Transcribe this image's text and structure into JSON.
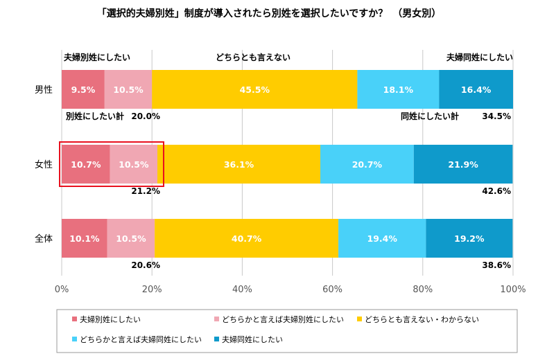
{
  "chart_data": {
    "type": "bar",
    "stacked": true,
    "orientation": "horizontal",
    "title": "「選択的夫婦別姓」制度が導入されたら別姓を選択したいですか？　（男女別）",
    "categories": [
      "男性",
      "女性",
      "全体"
    ],
    "series": [
      {
        "name": "夫婦別姓にしたい",
        "color": "#e8707e",
        "values": [
          9.5,
          10.7,
          10.1
        ],
        "labels": [
          "9.5%",
          "10.7%",
          "10.1%"
        ]
      },
      {
        "name": "どちらかと言えば夫婦別姓にしたい",
        "color": "#f0a7b3",
        "values": [
          10.5,
          10.5,
          10.5
        ],
        "labels": [
          "10.5%",
          "10.5%",
          "10.5%"
        ]
      },
      {
        "name": "どちらとも言えない・わからない",
        "color": "#ffcc00",
        "values": [
          45.5,
          36.1,
          40.7
        ],
        "labels": [
          "45.5%",
          "36.1%",
          "40.7%"
        ]
      },
      {
        "name": "どちらかと言えば夫婦同姓にしたい",
        "color": "#49d1f9",
        "values": [
          18.1,
          20.7,
          19.4
        ],
        "labels": [
          "18.1%",
          "20.7%",
          "19.4%"
        ]
      },
      {
        "name": "夫婦同姓にしたい",
        "color": "#0f9acb",
        "values": [
          16.4,
          21.9,
          19.2
        ],
        "labels": [
          "16.4%",
          "21.9%",
          "19.2%"
        ]
      }
    ],
    "xlim": [
      0,
      100
    ],
    "xticks": [
      "0%",
      "20%",
      "40%",
      "60%",
      "80%",
      "100%"
    ],
    "grid": true,
    "legend_position": "bottom",
    "column_headers": [
      "夫婦別姓にしたい",
      "どちらとも言えない",
      "夫婦同姓にしたい"
    ],
    "annotations": {
      "left_sum_label": "別姓にしたい計",
      "right_sum_label": "同姓にしたい計",
      "left_totals": [
        "20.0%",
        "21.2%",
        "20.6%"
      ],
      "right_totals": [
        "34.5%",
        "42.6%",
        "38.6%"
      ]
    },
    "highlight_color": "#e8101e"
  }
}
